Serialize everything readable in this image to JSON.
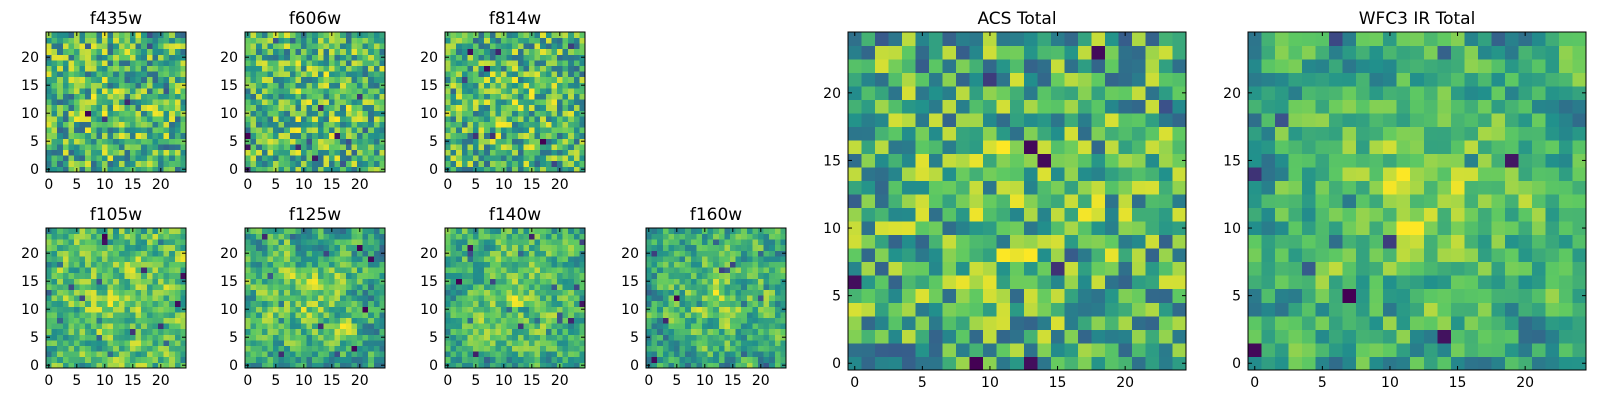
{
  "figure": {
    "colormap": "viridis",
    "colormap_stops": [
      "#440154",
      "#3b528b",
      "#21918c",
      "#5ec962",
      "#fde725"
    ]
  },
  "chart_data": [
    {
      "type": "heatmap",
      "title": "f435w",
      "grid_size": 25,
      "seed": 11,
      "smoothness": 0,
      "center_boost": 0.08,
      "ticks": [
        "0",
        "5",
        "10",
        "15",
        "20"
      ],
      "tick_values": [
        0,
        5,
        10,
        15,
        20
      ],
      "xlim": [
        -0.5,
        24.5
      ],
      "ylim": [
        -0.5,
        24.5
      ]
    },
    {
      "type": "heatmap",
      "title": "f606w",
      "grid_size": 25,
      "seed": 23,
      "smoothness": 0,
      "center_boost": 0.1,
      "ticks": [
        "0",
        "5",
        "10",
        "15",
        "20"
      ],
      "tick_values": [
        0,
        5,
        10,
        15,
        20
      ],
      "xlim": [
        -0.5,
        24.5
      ],
      "ylim": [
        -0.5,
        24.5
      ]
    },
    {
      "type": "heatmap",
      "title": "f814w",
      "grid_size": 25,
      "seed": 37,
      "smoothness": 0,
      "center_boost": 0.12,
      "ticks": [
        "0",
        "5",
        "10",
        "15",
        "20"
      ],
      "tick_values": [
        0,
        5,
        10,
        15,
        20
      ],
      "xlim": [
        -0.5,
        24.5
      ],
      "ylim": [
        -0.5,
        24.5
      ]
    },
    {
      "type": "heatmap",
      "title": "f105w",
      "grid_size": 25,
      "seed": 41,
      "smoothness": 1,
      "center_boost": 0.18,
      "ticks": [
        "0",
        "5",
        "10",
        "15",
        "20"
      ],
      "tick_values": [
        0,
        5,
        10,
        15,
        20
      ],
      "xlim": [
        -0.5,
        24.5
      ],
      "ylim": [
        -0.5,
        24.5
      ]
    },
    {
      "type": "heatmap",
      "title": "f125w",
      "grid_size": 25,
      "seed": 53,
      "smoothness": 1,
      "center_boost": 0.2,
      "ticks": [
        "0",
        "5",
        "10",
        "15",
        "20"
      ],
      "tick_values": [
        0,
        5,
        10,
        15,
        20
      ],
      "xlim": [
        -0.5,
        24.5
      ],
      "ylim": [
        -0.5,
        24.5
      ]
    },
    {
      "type": "heatmap",
      "title": "f140w",
      "grid_size": 25,
      "seed": 67,
      "smoothness": 1,
      "center_boost": 0.22,
      "ticks": [
        "0",
        "5",
        "10",
        "15",
        "20"
      ],
      "tick_values": [
        0,
        5,
        10,
        15,
        20
      ],
      "xlim": [
        -0.5,
        24.5
      ],
      "ylim": [
        -0.5,
        24.5
      ]
    },
    {
      "type": "heatmap",
      "title": "f160w",
      "grid_size": 25,
      "seed": 79,
      "smoothness": 1,
      "center_boost": 0.26,
      "ticks": [
        "0",
        "5",
        "10",
        "15",
        "20"
      ],
      "tick_values": [
        0,
        5,
        10,
        15,
        20
      ],
      "xlim": [
        -0.5,
        24.5
      ],
      "ylim": [
        -0.5,
        24.5
      ]
    },
    {
      "type": "heatmap",
      "title": "ACS Total",
      "grid_size": 25,
      "seed": 97,
      "smoothness": 0,
      "center_boost": 0.14,
      "ticks": [
        "0",
        "5",
        "10",
        "15",
        "20"
      ],
      "tick_values": [
        0,
        5,
        10,
        15,
        20
      ],
      "xlim": [
        -0.5,
        24.5
      ],
      "ylim": [
        -0.5,
        24.5
      ]
    },
    {
      "type": "heatmap",
      "title": "WFC3 IR Total",
      "grid_size": 25,
      "seed": 113,
      "smoothness": 1,
      "center_boost": 0.3,
      "ticks": [
        "0",
        "5",
        "10",
        "15",
        "20"
      ],
      "tick_values": [
        0,
        5,
        10,
        15,
        20
      ],
      "xlim": [
        -0.5,
        24.5
      ],
      "ylim": [
        -0.5,
        24.5
      ]
    }
  ]
}
